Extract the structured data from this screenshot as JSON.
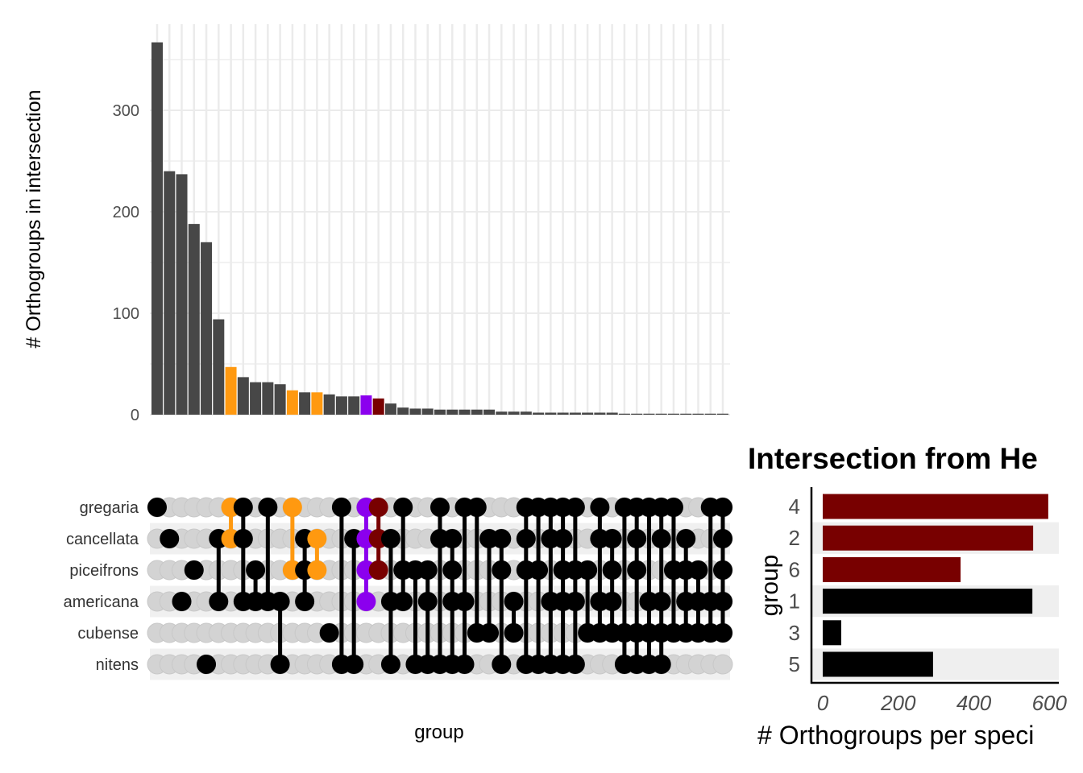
{
  "chart_data": [
    {
      "type": "bar",
      "subtype": "upset-intersection-sizes",
      "ylabel": "# Orthogroups in intersection",
      "xlabel": "group",
      "ylim": [
        0,
        385
      ],
      "yticks": [
        0,
        100,
        200,
        300
      ],
      "grid": true,
      "bar_color": "#474747",
      "values": [
        367,
        240,
        237,
        188,
        170,
        94,
        47,
        37,
        32,
        32,
        30,
        24,
        22,
        22,
        20,
        18,
        18,
        19,
        16,
        11,
        7,
        6,
        6,
        5,
        5,
        5,
        5,
        5,
        3,
        3,
        3,
        2,
        2,
        2,
        2,
        2,
        2,
        2,
        1,
        1,
        1,
        1,
        1,
        1,
        1,
        1,
        1
      ],
      "highlights": [
        {
          "column": 7,
          "color": "#FF9910"
        },
        {
          "column": 12,
          "color": "#FF9910"
        },
        {
          "column": 14,
          "color": "#FF9910"
        },
        {
          "column": 18,
          "color": "#8B00EE"
        },
        {
          "column": 19,
          "color": "#780000"
        }
      ],
      "sets": [
        "gregaria",
        "cancellata",
        "piceifrons",
        "americana",
        "cubense",
        "nitens"
      ],
      "memberships": [
        [
          "gregaria"
        ],
        [
          "cancellata"
        ],
        [
          "americana"
        ],
        [
          "piceifrons"
        ],
        [
          "nitens"
        ],
        [
          "cancellata",
          "americana"
        ],
        [
          "gregaria",
          "cancellata"
        ],
        [
          "gregaria",
          "cancellata",
          "americana"
        ],
        [
          "piceifrons",
          "americana"
        ],
        [
          "gregaria",
          "americana"
        ],
        [
          "americana",
          "nitens"
        ],
        [
          "gregaria",
          "piceifrons"
        ],
        [
          "cancellata",
          "piceifrons",
          "americana"
        ],
        [
          "cancellata",
          "piceifrons"
        ],
        [
          "cubense"
        ],
        [
          "gregaria",
          "nitens"
        ],
        [
          "cancellata",
          "nitens"
        ],
        [
          "gregaria",
          "cancellata",
          "piceifrons",
          "americana"
        ],
        [
          "gregaria",
          "cancellata",
          "piceifrons"
        ],
        [
          "cancellata",
          "americana",
          "nitens"
        ],
        [
          "gregaria",
          "piceifrons",
          "americana"
        ],
        [
          "piceifrons",
          "nitens"
        ],
        [
          "piceifrons",
          "americana",
          "nitens"
        ],
        [
          "gregaria",
          "cancellata",
          "nitens"
        ],
        [
          "cancellata",
          "piceifrons",
          "americana",
          "nitens"
        ],
        [
          "gregaria",
          "americana",
          "nitens"
        ],
        [
          "gregaria",
          "cubense"
        ],
        [
          "cancellata",
          "cubense"
        ],
        [
          "cancellata",
          "piceifrons",
          "nitens"
        ],
        [
          "americana",
          "cubense"
        ],
        [
          "gregaria",
          "cancellata",
          "piceifrons",
          "nitens"
        ],
        [
          "gregaria",
          "piceifrons",
          "nitens"
        ],
        [
          "gregaria",
          "americana",
          "nitens",
          "cancellata"
        ],
        [
          "gregaria",
          "cancellata",
          "piceifrons",
          "americana",
          "nitens"
        ],
        [
          "gregaria",
          "piceifrons",
          "americana",
          "nitens"
        ],
        [
          "piceifrons",
          "cubense"
        ],
        [
          "gregaria",
          "cancellata",
          "americana",
          "cubense"
        ],
        [
          "cancellata",
          "piceifrons",
          "americana",
          "cubense"
        ],
        [
          "gregaria",
          "cubense",
          "nitens"
        ],
        [
          "gregaria",
          "cancellata",
          "piceifrons",
          "cubense",
          "nitens"
        ],
        [
          "gregaria",
          "americana",
          "cubense",
          "nitens"
        ],
        [
          "gregaria",
          "cancellata",
          "americana",
          "cubense",
          "nitens"
        ],
        [
          "gregaria",
          "piceifrons",
          "cubense"
        ],
        [
          "cancellata",
          "piceifrons",
          "americana",
          "cubense"
        ],
        [
          "piceifrons",
          "americana",
          "cubense"
        ],
        [
          "gregaria",
          "americana",
          "cubense"
        ],
        [
          "cancellata",
          "piceifrons",
          "americana",
          "cubense",
          "gregaria"
        ]
      ],
      "empty_dot_color": "#d3d3d3",
      "dot_color": "#000000"
    },
    {
      "type": "bar",
      "orientation": "horizontal",
      "title": "Intersection from He",
      "xlabel": "# Orthogroups per speci",
      "ylabel": "group",
      "categories": [
        "4",
        "2",
        "6",
        "1",
        "3",
        "5"
      ],
      "values": [
        597,
        557,
        365,
        555,
        49,
        292
      ],
      "colors": [
        "#780000",
        "#780000",
        "#780000",
        "#000000",
        "#000000",
        "#000000"
      ],
      "xlim": [
        0,
        625
      ],
      "xticks": [
        "0",
        "200",
        "400",
        "600"
      ]
    }
  ]
}
